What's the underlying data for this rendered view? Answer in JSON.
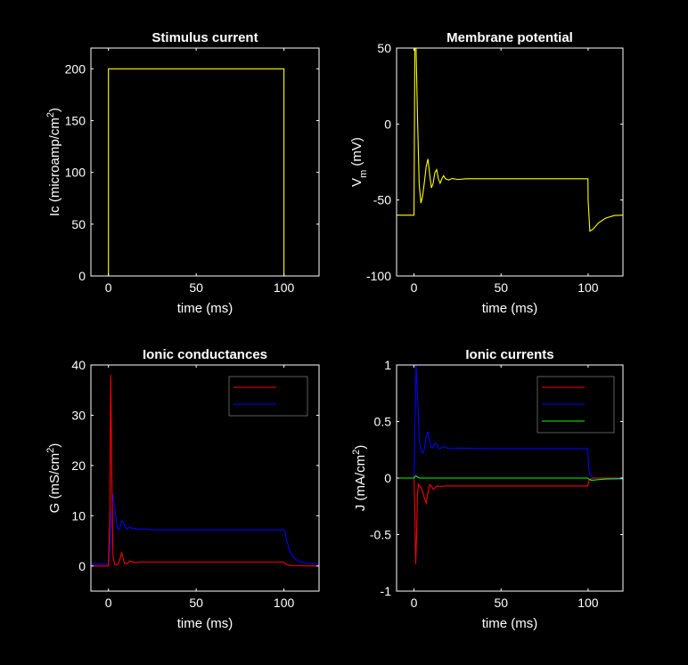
{
  "chart_data": [
    {
      "id": "stim",
      "type": "line",
      "title": "Stimulus current",
      "xlabel": "time (ms)",
      "ylabel": "Ic (microamp/cm",
      "ylabel_sup": "2",
      "ylabel_tail": ")",
      "xlim": [
        -10,
        120
      ],
      "ylim": [
        0,
        220
      ],
      "xticks": [
        0,
        50,
        100
      ],
      "yticks": [
        0,
        50,
        100,
        150,
        200
      ],
      "ytick_labels": [
        "0",
        "50",
        "100",
        "150",
        "200"
      ],
      "series": [
        {
          "color": "#ffff00",
          "x": [
            -10,
            0,
            0,
            100,
            100,
            120
          ],
          "y": [
            0,
            0,
            200,
            200,
            0,
            0
          ]
        }
      ]
    },
    {
      "id": "vm",
      "type": "line",
      "title": "Membrane potential",
      "xlabel": "time (ms)",
      "ylabel": "V",
      "ylabel_sub": "m",
      "ylabel_tail": " (mV)",
      "xlim": [
        -10,
        120
      ],
      "ylim": [
        -100,
        50
      ],
      "xticks": [
        0,
        50,
        100
      ],
      "yticks": [
        -100,
        -50,
        0,
        50
      ],
      "ytick_labels": [
        "-100",
        "-50",
        "0",
        "50"
      ],
      "series": [
        {
          "color": "#ffff00",
          "x": [
            -10,
            0,
            0.5,
            1.2,
            2,
            3,
            4,
            5,
            6,
            7,
            8,
            9,
            10,
            11,
            12,
            13,
            14,
            15,
            16,
            17,
            18,
            20,
            22,
            25,
            30,
            40,
            60,
            80,
            99.9,
            100,
            101,
            103,
            106,
            110,
            115,
            120
          ],
          "y": [
            -60,
            -60,
            50,
            50,
            5,
            -40,
            -52,
            -47,
            -38,
            -28,
            -23,
            -33,
            -42,
            -39,
            -32,
            -30,
            -36,
            -39,
            -36,
            -34,
            -36,
            -36.8,
            -35.8,
            -36.5,
            -36,
            -36,
            -36,
            -36,
            -36,
            -50,
            -70.5,
            -69,
            -65,
            -62,
            -60.2,
            -60
          ]
        }
      ]
    },
    {
      "id": "gion",
      "type": "line",
      "title": "Ionic conductances",
      "xlabel": "time (ms)",
      "ylabel": "G (mS/cm",
      "ylabel_sup": "2",
      "ylabel_tail": ")",
      "xlim": [
        -10,
        120
      ],
      "ylim": [
        -5,
        40
      ],
      "xticks": [
        0,
        50,
        100
      ],
      "yticks": [
        0,
        10,
        20,
        30,
        40
      ],
      "ytick_labels": [
        "0",
        "10",
        "20",
        "30",
        "40"
      ],
      "legend": {
        "placement": "top-right",
        "entries": [
          "",
          ""
        ]
      },
      "series": [
        {
          "color": "#0000ff",
          "x": [
            -10,
            0,
            0.5,
            1.5,
            2.5,
            3.5,
            4.5,
            5.5,
            6.5,
            7.5,
            8.5,
            9.5,
            10.5,
            11.5,
            12.5,
            13.5,
            15,
            17,
            20,
            25,
            40,
            99.8,
            100.5,
            101.5,
            103,
            105,
            108,
            112,
            120
          ],
          "y": [
            0.4,
            0.4,
            2,
            9,
            14.3,
            12,
            8.5,
            7.2,
            7.5,
            9,
            8.8,
            7.8,
            7.3,
            7.7,
            7.8,
            7.4,
            7.5,
            7.3,
            7.4,
            7.2,
            7.2,
            7.2,
            7.0,
            5.2,
            3.3,
            1.9,
            1.0,
            0.6,
            0.4
          ]
        },
        {
          "color": "#ff0000",
          "x": [
            -10,
            0,
            0.8,
            1.3,
            2,
            2.6,
            3.5,
            4.5,
            5.5,
            6.5,
            7.5,
            8.2,
            9,
            10,
            11,
            12,
            13,
            15,
            18,
            25,
            40,
            99.8,
            100.5,
            101.5,
            103,
            106,
            120
          ],
          "y": [
            0,
            0,
            10,
            38,
            15,
            2,
            0.3,
            0.2,
            0.4,
            1.3,
            2.6,
            1.8,
            0.6,
            0.4,
            0.6,
            1.0,
            0.9,
            0.7,
            0.8,
            0.8,
            0.8,
            0.8,
            0.5,
            0.3,
            0.15,
            0.05,
            0
          ]
        }
      ]
    },
    {
      "id": "jion",
      "type": "line",
      "title": "Ionic currents",
      "xlabel": "time (ms)",
      "ylabel": "J (mA/cm",
      "ylabel_sup": "2",
      "ylabel_tail": ")",
      "xlim": [
        -10,
        120
      ],
      "ylim": [
        -1,
        1
      ],
      "xticks": [
        0,
        50,
        100
      ],
      "yticks": [
        -1,
        -0.5,
        0,
        0.5,
        1
      ],
      "ytick_labels": [
        "-1",
        "-0.5",
        "0",
        "0.5",
        "1"
      ],
      "legend": {
        "placement": "top-right",
        "entries": [
          "",
          "",
          ""
        ]
      },
      "series": [
        {
          "color": "#0000ff",
          "x": [
            -10,
            0,
            0.5,
            1.2,
            2,
            3,
            4,
            5,
            6,
            7,
            8,
            9,
            10,
            11,
            12,
            13,
            14,
            15,
            17,
            20,
            25,
            40,
            99.8,
            100.3,
            101,
            102,
            104,
            108,
            120
          ],
          "y": [
            0,
            0,
            0.4,
            1.0,
            0.75,
            0.35,
            0.24,
            0.22,
            0.26,
            0.36,
            0.41,
            0.33,
            0.27,
            0.27,
            0.31,
            0.3,
            0.26,
            0.26,
            0.28,
            0.26,
            0.265,
            0.26,
            0.26,
            0.1,
            0.03,
            0.01,
            0,
            -0.01,
            -0.01
          ]
        },
        {
          "color": "#ff0000",
          "x": [
            -10,
            0,
            0.5,
            1,
            1.5,
            2,
            2.5,
            3,
            4,
            5,
            6,
            7,
            8,
            9,
            10,
            11,
            12,
            13,
            15,
            18,
            25,
            40,
            99.8,
            100.3,
            101,
            103,
            120
          ],
          "y": [
            0,
            0,
            -0.3,
            -0.76,
            -0.5,
            -0.15,
            -0.05,
            -0.07,
            -0.08,
            -0.12,
            -0.18,
            -0.22,
            -0.13,
            -0.06,
            -0.07,
            -0.1,
            -0.09,
            -0.07,
            -0.075,
            -0.07,
            -0.07,
            -0.07,
            -0.07,
            -0.03,
            -0.01,
            0,
            0
          ]
        },
        {
          "color": "#00ff00",
          "x": [
            -10,
            0,
            1,
            2,
            3,
            5,
            10,
            20,
            99.8,
            100.5,
            102,
            105,
            110,
            120
          ],
          "y": [
            0,
            0,
            0.02,
            0.01,
            0.0,
            0.0,
            0.0,
            0.0,
            0.0,
            -0.01,
            -0.02,
            -0.015,
            -0.008,
            -0.005
          ]
        }
      ]
    }
  ]
}
